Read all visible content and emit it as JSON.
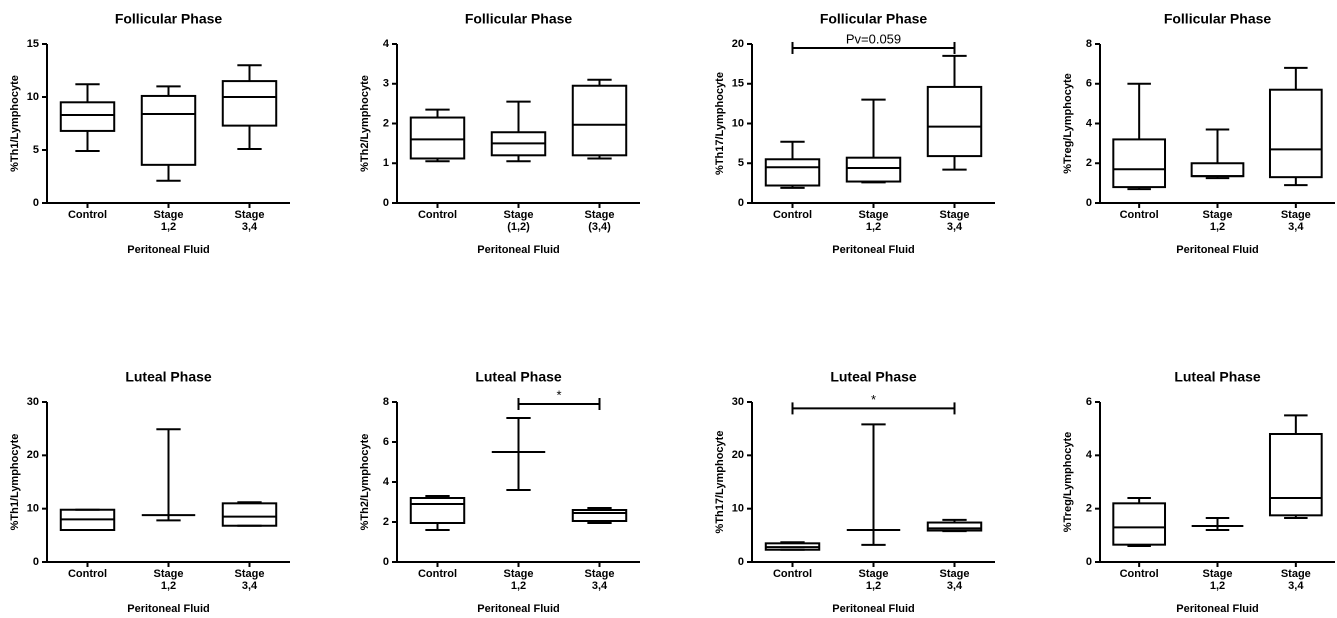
{
  "chart_data": [
    {
      "type": "box",
      "title": "Follicular Phase",
      "ylabel": "%Th1/Lymphocyte",
      "xlabel": "Peritoneal Fluid",
      "categories": [
        "Control",
        "Stage 1,2",
        "Stage 3,4"
      ],
      "values": [
        {
          "min": 4.9,
          "q1": 6.8,
          "median": 8.3,
          "q3": 9.5,
          "max": 11.2
        },
        {
          "min": 2.1,
          "q1": 3.6,
          "median": 8.4,
          "q3": 10.1,
          "max": 11.0
        },
        {
          "min": 5.1,
          "q1": 7.3,
          "median": 10.0,
          "q3": 11.5,
          "max": 13.0
        }
      ],
      "ylim": [
        0,
        15
      ],
      "yticks": [
        0,
        5,
        10,
        15
      ]
    },
    {
      "type": "box",
      "title": "Follicular Phase",
      "ylabel": "%Th2/Lymphocyte",
      "xlabel": "Peritoneal Fluid",
      "categories": [
        "Control",
        "Stage (1,2)",
        "Stage (3,4)"
      ],
      "values": [
        {
          "min": 1.05,
          "q1": 1.12,
          "median": 1.6,
          "q3": 2.15,
          "max": 2.35
        },
        {
          "min": 1.05,
          "q1": 1.2,
          "median": 1.5,
          "q3": 1.78,
          "max": 2.55
        },
        {
          "min": 1.12,
          "q1": 1.2,
          "median": 1.97,
          "q3": 2.95,
          "max": 3.1
        }
      ],
      "ylim": [
        0,
        4
      ],
      "yticks": [
        0,
        1,
        2,
        3,
        4
      ]
    },
    {
      "type": "box",
      "title": "Follicular Phase",
      "ylabel": "%Th17/Lymphocyte",
      "xlabel": "Peritoneal Fluid",
      "categories": [
        "Control",
        "Stage 1,2",
        "Stage 3,4"
      ],
      "values": [
        {
          "min": 1.9,
          "q1": 2.2,
          "median": 4.5,
          "q3": 5.5,
          "max": 7.7
        },
        {
          "min": 2.6,
          "q1": 2.7,
          "median": 4.4,
          "q3": 5.7,
          "max": 13.0
        },
        {
          "min": 4.2,
          "q1": 5.9,
          "median": 9.6,
          "q3": 14.6,
          "max": 18.5
        }
      ],
      "ylim": [
        0,
        20
      ],
      "yticks": [
        0,
        5,
        10,
        15,
        20
      ],
      "annotations": [
        {
          "text": "Pv=0.059",
          "y": 19.5,
          "span": [
            0,
            2
          ]
        }
      ]
    },
    {
      "type": "box",
      "title": "Follicular Phase",
      "ylabel": "%Treg/Lymphocyte",
      "xlabel": "Peritoneal Fluid",
      "categories": [
        "Control",
        "Stage 1,2",
        "Stage 3,4"
      ],
      "values": [
        {
          "min": 0.7,
          "q1": 0.8,
          "median": 1.7,
          "q3": 3.2,
          "max": 6.0
        },
        {
          "min": 1.25,
          "q1": 1.35,
          "median": 1.35,
          "q3": 2.0,
          "max": 3.7
        },
        {
          "min": 0.9,
          "q1": 1.3,
          "median": 2.7,
          "q3": 5.7,
          "max": 6.8
        }
      ],
      "ylim": [
        0,
        8
      ],
      "yticks": [
        0,
        2,
        4,
        6,
        8
      ]
    },
    {
      "type": "box",
      "title": "Luteal Phase",
      "ylabel": "%Th1/Lymphocyte",
      "xlabel": "Peritoneal Fluid",
      "categories": [
        "Control",
        "Stage 1,2",
        "Stage 3,4"
      ],
      "values": [
        {
          "min": 6.0,
          "q1": 6.0,
          "median": 8.0,
          "q3": 9.8,
          "max": 9.8
        },
        {
          "min": 7.8,
          "q1": 8.8,
          "median": 8.8,
          "q3": 8.8,
          "max": 24.9
        },
        {
          "min": 6.8,
          "q1": 6.8,
          "median": 8.5,
          "q3": 11.0,
          "max": 11.2
        }
      ],
      "ylim": [
        0,
        30
      ],
      "yticks": [
        0,
        10,
        20,
        30
      ]
    },
    {
      "type": "box",
      "title": "Luteal Phase",
      "ylabel": "%Th2/Lymphocyte",
      "xlabel": "Peritoneal Fluid",
      "categories": [
        "Control",
        "Stage 1,2",
        "Stage 3,4"
      ],
      "values": [
        {
          "min": 1.6,
          "q1": 1.95,
          "median": 2.9,
          "q3": 3.2,
          "max": 3.3
        },
        {
          "min": 3.6,
          "q1": 5.5,
          "median": 5.5,
          "q3": 5.5,
          "max": 7.2
        },
        {
          "min": 1.95,
          "q1": 2.05,
          "median": 2.45,
          "q3": 2.6,
          "max": 2.7
        }
      ],
      "ylim": [
        0,
        8
      ],
      "yticks": [
        0,
        2,
        4,
        6,
        8
      ],
      "annotations": [
        {
          "text": "*",
          "y": 7.9,
          "span": [
            1,
            2
          ]
        }
      ]
    },
    {
      "type": "box",
      "title": "Luteal Phase",
      "ylabel": "%Th17/Lymphocyte",
      "xlabel": "Peritoneal Fluid",
      "categories": [
        "Control",
        "Stage 1,2",
        "Stage 3,4"
      ],
      "values": [
        {
          "min": 2.3,
          "q1": 2.3,
          "median": 2.8,
          "q3": 3.5,
          "max": 3.7
        },
        {
          "min": 3.2,
          "q1": 6.0,
          "median": 6.0,
          "q3": 6.0,
          "max": 25.8
        },
        {
          "min": 5.8,
          "q1": 5.9,
          "median": 6.3,
          "q3": 7.4,
          "max": 7.9
        }
      ],
      "ylim": [
        0,
        30
      ],
      "yticks": [
        0,
        10,
        20,
        30
      ],
      "annotations": [
        {
          "text": "*",
          "y": 28.8,
          "span": [
            0,
            2
          ]
        }
      ]
    },
    {
      "type": "box",
      "title": "Luteal Phase",
      "ylabel": "%Treg/Lymphocyte",
      "xlabel": "Peritoneal Fluid",
      "categories": [
        "Control",
        "Stage 1,2",
        "Stage 3,4"
      ],
      "values": [
        {
          "min": 0.6,
          "q1": 0.65,
          "median": 1.3,
          "q3": 2.2,
          "max": 2.4
        },
        {
          "min": 1.2,
          "q1": 1.35,
          "median": 1.35,
          "q3": 1.35,
          "max": 1.65
        },
        {
          "min": 1.65,
          "q1": 1.75,
          "median": 2.4,
          "q3": 4.8,
          "max": 5.5
        }
      ],
      "ylim": [
        0,
        6
      ],
      "yticks": [
        0,
        2,
        4,
        6
      ]
    }
  ]
}
